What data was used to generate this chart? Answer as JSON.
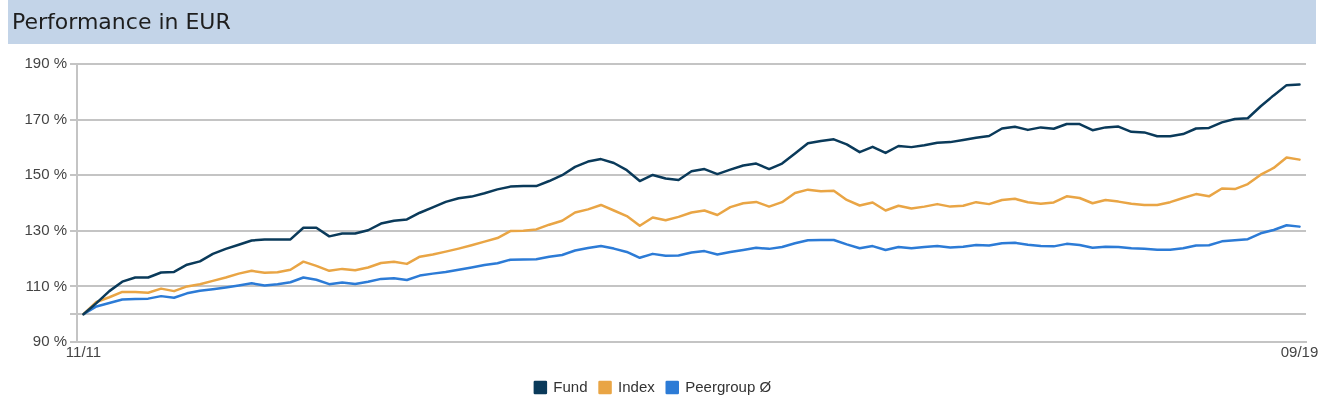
{
  "chart_data": {
    "type": "line",
    "title": "Performance in EUR",
    "categories": [
      "11/11",
      null,
      null,
      null,
      null,
      null,
      null,
      null,
      null,
      null,
      null,
      null,
      null,
      null,
      null,
      null,
      null,
      null,
      null,
      null,
      null,
      null,
      null,
      null,
      null,
      null,
      null,
      null,
      null,
      null,
      null,
      null,
      null,
      null,
      null,
      null,
      null,
      null,
      null,
      null,
      null,
      null,
      null,
      null,
      null,
      null,
      null,
      null,
      null,
      null,
      null,
      null,
      null,
      null,
      null,
      null,
      null,
      null,
      null,
      null,
      null,
      null,
      null,
      null,
      null,
      null,
      null,
      null,
      null,
      null,
      null,
      null,
      null,
      null,
      null,
      null,
      null,
      null,
      null,
      null,
      null,
      null,
      null,
      null,
      null,
      null,
      null,
      null,
      null,
      null,
      null,
      null,
      null,
      null,
      "09/19"
    ],
    "series": [
      {
        "name": "Fund",
        "color": "#0a3a5a",
        "values": [
          100,
          104,
          108.3,
          111.7,
          113.2,
          113.2,
          115,
          115.2,
          117.8,
          119,
          121.7,
          123.5,
          125,
          126.5,
          126.9,
          126.9,
          126.9,
          131.1,
          131.1,
          128,
          129,
          129,
          130.2,
          132.6,
          133.6,
          134.1,
          136.5,
          138.4,
          140.4,
          141.7,
          142.3,
          143.5,
          144.9,
          145.9,
          146.1,
          146.1,
          147.9,
          150,
          153,
          154.9,
          155.8,
          154.4,
          151.8,
          147.9,
          150.1,
          148.8,
          148.3,
          151.4,
          152.2,
          150.4,
          152,
          153.5,
          154.2,
          152.2,
          154.2,
          157.8,
          161.5,
          162.3,
          162.9,
          161.1,
          158.3,
          160.2,
          158,
          160.5,
          160.1,
          160.8,
          161.7,
          161.9,
          162.7,
          163.5,
          164.1,
          166.8,
          167.4,
          166.3,
          167.2,
          166.7,
          168.4,
          168.4,
          166.2,
          167.2,
          167.5,
          165.6,
          165.4,
          164,
          164,
          164.8,
          166.8,
          167,
          169,
          170.2,
          170.5,
          174.8,
          178.7,
          182.4,
          182.6
        ]
      },
      {
        "name": "Index",
        "color": "#e9a545",
        "values": [
          100,
          104.4,
          106.1,
          108,
          108,
          107.7,
          109.2,
          108.3,
          110,
          110.8,
          112,
          113.2,
          114.6,
          115.6,
          114.9,
          115.1,
          116,
          118.9,
          117.4,
          115.6,
          116.3,
          115.8,
          116.8,
          118.4,
          118.9,
          118.1,
          120.7,
          121.5,
          122.5,
          123.6,
          124.8,
          126.1,
          127.4,
          129.9,
          130,
          130.5,
          132.2,
          133.6,
          136.6,
          137.7,
          139.3,
          137.3,
          135.3,
          131.8,
          134.8,
          133.8,
          135,
          136.6,
          137.3,
          135.7,
          138.5,
          139.9,
          140.4,
          138.7,
          140.3,
          143.6,
          144.8,
          144.2,
          144.4,
          141.1,
          139.1,
          140.2,
          137.3,
          139,
          138,
          138.7,
          139.6,
          138.7,
          139,
          140.3,
          139.6,
          141.1,
          141.5,
          140.3,
          139.7,
          140.2,
          142.4,
          141.8,
          139.9,
          141.1,
          140.5,
          139.7,
          139.3,
          139.3,
          140.3,
          141.8,
          143.2,
          142.4,
          145.2,
          145,
          146.8,
          150.2,
          152.6,
          156.4,
          155.6
        ]
      },
      {
        "name": "Peergroup Ø",
        "color": "#2c7bd6",
        "values": [
          100,
          102.8,
          104,
          105.3,
          105.5,
          105.6,
          106.5,
          105.9,
          107.5,
          108.4,
          109,
          109.6,
          110.3,
          111.1,
          110.3,
          110.8,
          111.5,
          113.2,
          112.4,
          110.8,
          111.4,
          110.9,
          111.7,
          112.7,
          112.9,
          112.3,
          113.9,
          114.6,
          115.2,
          116,
          116.8,
          117.7,
          118.3,
          119.6,
          119.7,
          119.8,
          120.7,
          121.3,
          122.9,
          123.8,
          124.5,
          123.6,
          122.4,
          120.3,
          121.7,
          121,
          121.1,
          122.2,
          122.7,
          121.5,
          122.4,
          123.1,
          123.9,
          123.5,
          124.2,
          125.5,
          126.6,
          126.7,
          126.7,
          125.1,
          123.7,
          124.5,
          123.1,
          124.2,
          123.7,
          124.2,
          124.5,
          124,
          124.3,
          124.9,
          124.7,
          125.5,
          125.7,
          125,
          124.5,
          124.4,
          125.3,
          124.9,
          123.9,
          124.3,
          124.2,
          123.7,
          123.5,
          123.2,
          123.2,
          123.7,
          124.7,
          124.8,
          126.2,
          126.6,
          127,
          129.1,
          130.3,
          132,
          131.5
        ]
      }
    ],
    "ylim": [
      90,
      190
    ],
    "yticks": [
      {
        "value": 90,
        "label": "90 %"
      },
      {
        "value": 100,
        "label": null
      },
      {
        "value": 110,
        "label": "110 %"
      },
      {
        "value": 130,
        "label": "130 %"
      },
      {
        "value": 150,
        "label": "150 %"
      },
      {
        "value": 170,
        "label": "170 %"
      },
      {
        "value": 190,
        "label": "190 %"
      }
    ],
    "grid": "y",
    "legend": "bottom"
  }
}
